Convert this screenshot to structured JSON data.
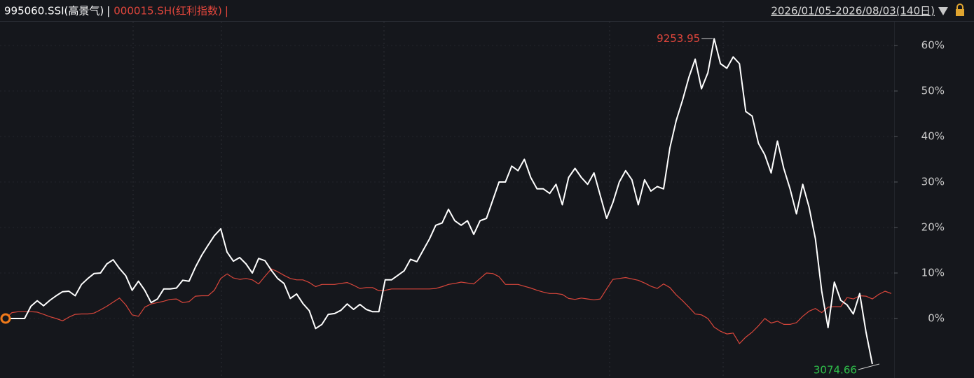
{
  "chart_data": {
    "type": "line",
    "separator": "|",
    "date_range": "2026/01/05-2026/08/03(140日)",
    "ylim": [
      -13,
      65
    ],
    "yticks": [
      {
        "value": 0,
        "label": "0%"
      },
      {
        "value": 10,
        "label": "10%"
      },
      {
        "value": 20,
        "label": "20%"
      },
      {
        "value": 30,
        "label": "30%"
      },
      {
        "value": 40,
        "label": "40%"
      },
      {
        "value": 50,
        "label": "50%"
      },
      {
        "value": 60,
        "label": "60%"
      }
    ],
    "grid": true,
    "series": [
      {
        "name": "995060.SSI(高景气)",
        "color": "#ffffff",
        "values": [
          0,
          0,
          0,
          0,
          2.7,
          3.9,
          2.8,
          4,
          5,
          5.9,
          6,
          5,
          7.5,
          8.8,
          9.9,
          10,
          12,
          12.9,
          11,
          9.4,
          6.2,
          8.2,
          6.2,
          3.5,
          4.3,
          6.5,
          6.5,
          6.7,
          8.4,
          8.2,
          11.3,
          13.9,
          16.1,
          18.2,
          19.7,
          14.6,
          12.6,
          13.4,
          12,
          10,
          13.2,
          12.7,
          10.6,
          8.8,
          7.7,
          4.4,
          5.4,
          3.3,
          1.7,
          -2.2,
          -1.3,
          0.9,
          1.1,
          1.8,
          3.2,
          2,
          3.1,
          2,
          1.5,
          1.5,
          8.5,
          8.5,
          9.5,
          10.5,
          13,
          12.5,
          15,
          17.5,
          20.5,
          21,
          24,
          21.5,
          20.5,
          21.5,
          18.5,
          21.5,
          22,
          26,
          30,
          30,
          33.5,
          32.5,
          35,
          31,
          28.5,
          28.5,
          27.5,
          29.5,
          25,
          31,
          33,
          31,
          29.5,
          32,
          27,
          22,
          25.5,
          30,
          32.5,
          30.5,
          25,
          30.5,
          28,
          29,
          28.5,
          37.5,
          43.5,
          48,
          53,
          57,
          50.5,
          54,
          61.5,
          56,
          55,
          57.5,
          56,
          45.5,
          44.5,
          38.5,
          36,
          32,
          39,
          33,
          28.5,
          23,
          29.5,
          24.5,
          17.5,
          6,
          -2,
          8,
          4,
          3,
          1,
          5.5,
          -3,
          -10,
          null,
          null,
          null
        ]
      },
      {
        "name": "000015.SH(红利指数)",
        "color": "#d9463b",
        "values": [
          0,
          1.3,
          1.5,
          1.5,
          1.5,
          1.4,
          0.9,
          0.4,
          0,
          -0.5,
          0.3,
          0.9,
          1,
          1,
          1.2,
          1.9,
          2.7,
          3.6,
          4.5,
          3,
          0.8,
          0.5,
          2.5,
          3.2,
          3.5,
          3.8,
          4.2,
          4.3,
          3.5,
          3.7,
          4.9,
          5,
          5,
          6.2,
          8.8,
          9.8,
          8.9,
          8.6,
          8.8,
          8.5,
          7.6,
          9.3,
          10.9,
          10.3,
          9.5,
          8.8,
          8.5,
          8.5,
          7.9,
          7,
          7.5,
          7.5,
          7.5,
          7.7,
          7.9,
          7.3,
          6.6,
          6.8,
          6.8,
          6.1,
          6.2,
          6.5,
          6.5,
          6.5,
          6.5,
          6.5,
          6.5,
          6.5,
          6.6,
          7,
          7.5,
          7.7,
          8,
          7.8,
          7.6,
          8.8,
          10,
          9.9,
          9.2,
          7.5,
          7.5,
          7.5,
          7.1,
          6.7,
          6.2,
          5.8,
          5.5,
          5.5,
          5.3,
          4.4,
          4.2,
          4.5,
          4.3,
          4.1,
          4.3,
          6.5,
          8.6,
          8.8,
          9,
          8.7,
          8.4,
          7.8,
          7.1,
          6.6,
          7.6,
          6.8,
          5.2,
          3.9,
          2.5,
          1,
          0.8,
          0,
          -1.9,
          -2.8,
          -3.4,
          -3.2,
          -5.5,
          -4.1,
          -3,
          -1.6,
          0,
          -1,
          -0.6,
          -1.3,
          -1.3,
          -0.9,
          0.5,
          1.6,
          2.2,
          1.3,
          2.5,
          2.6,
          2.6,
          4.6,
          4.3,
          5,
          4.9,
          4.3,
          5.3,
          6,
          5.5
        ]
      }
    ],
    "annotations": [
      {
        "text": "9253.95",
        "color": "#e0463c"
      },
      {
        "text": "3074.66",
        "color": "#2fbf4a"
      }
    ]
  }
}
